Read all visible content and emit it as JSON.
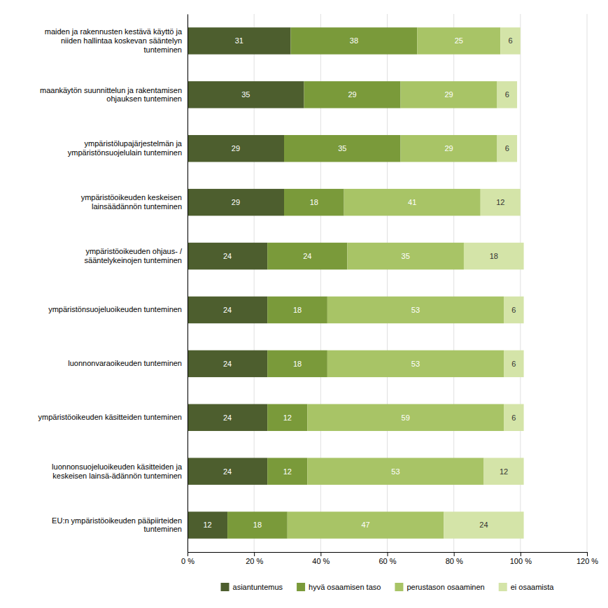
{
  "chart_data": {
    "type": "bar",
    "orientation": "horizontal",
    "stacked": true,
    "data_labels": true,
    "grid": true,
    "legend": "bottom",
    "categories": [
      "maiden ja rakennusten kestävä käyttö ja\nniiden hallintaa koskevan sääntelyn\ntunteminen",
      "maankäytön suunnittelun ja rakentamisen\nohjauksen tunteminen",
      "ympäristölupajärjestelmän ja\nympäristönsuojelulain tunteminen",
      "ympäristöoikeuden keskeisen\nlainsäädännön tunteminen",
      "ympäristöoikeuden ohjaus- /\nsääntelykeinojen tunteminen",
      "ympäristönsuojeluoikeuden tunteminen",
      "luonnonvaraoikeuden tunteminen",
      "ympäristöoikeuden käsitteiden tunteminen",
      "luonnonsuojeluoikeuden käsitteiden ja\nkeskeisen lainsä-ädännön tunteminen",
      "EU:n ympäristöoikeuden pääpiirteiden\ntunteminen"
    ],
    "series": [
      {
        "name": "asiantuntemus",
        "color": "#4d5e2e",
        "values": [
          31,
          35,
          29,
          29,
          24,
          24,
          24,
          24,
          24,
          12
        ]
      },
      {
        "name": "hyvä osaamisen taso",
        "color": "#7a9a3a",
        "values": [
          38,
          29,
          35,
          18,
          24,
          18,
          18,
          12,
          12,
          18
        ]
      },
      {
        "name": "perustason osaaminen",
        "color": "#a8c466",
        "values": [
          25,
          29,
          29,
          41,
          35,
          53,
          53,
          59,
          53,
          47
        ]
      },
      {
        "name": "ei osaamista",
        "color": "#d4e4a8",
        "values": [
          6,
          6,
          6,
          12,
          18,
          6,
          6,
          6,
          12,
          24
        ]
      }
    ],
    "xlim": [
      0,
      120
    ],
    "xticks": [
      {
        "value": 0,
        "label": "0 %"
      },
      {
        "value": 20,
        "label": "20 %"
      },
      {
        "value": 40,
        "label": "40 %"
      },
      {
        "value": 60,
        "label": "60 %"
      },
      {
        "value": 80,
        "label": "80 %"
      },
      {
        "value": 100,
        "label": "100 %"
      },
      {
        "value": 120,
        "label": "120 %"
      }
    ]
  }
}
